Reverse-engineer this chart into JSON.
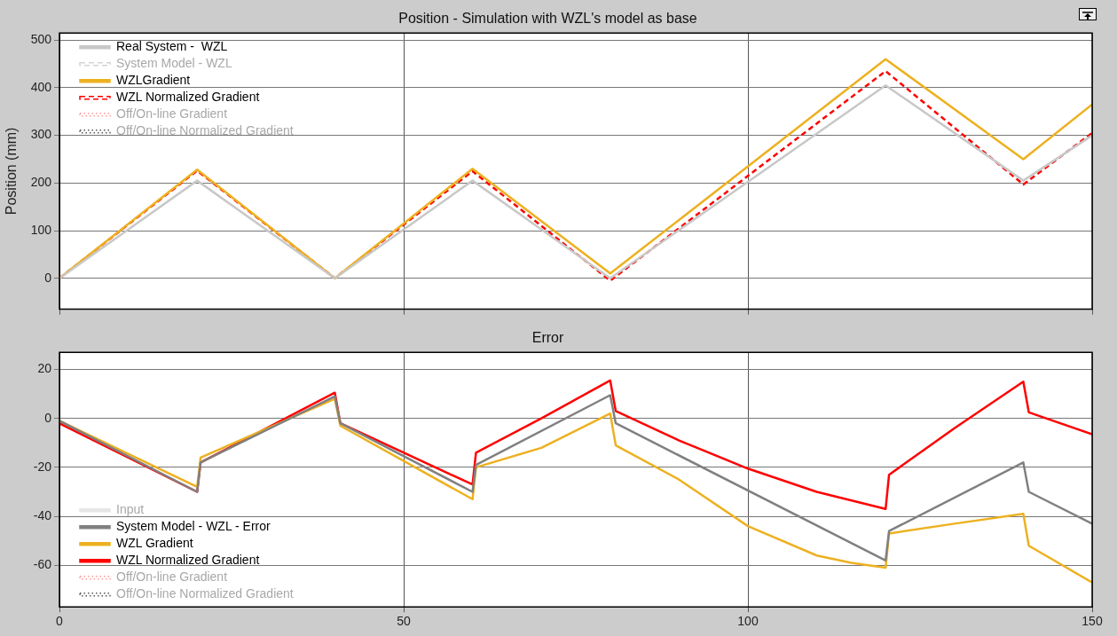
{
  "chart_data": [
    {
      "type": "line",
      "title": "Position - Simulation with WZL's model as base",
      "ylabel": "Position (mm)",
      "xlim": [
        0,
        150
      ],
      "xticks": [
        0,
        50,
        100,
        150
      ],
      "ylim": [
        -65,
        515
      ],
      "yticks": [
        0,
        100,
        200,
        300,
        400,
        500
      ],
      "grid": true,
      "legend": "top left",
      "tick_labels": "y",
      "series": [
        {
          "name": "Real System -  WZL",
          "color": "#c8c8c8",
          "x": [
            0,
            20,
            40,
            60,
            80,
            120,
            140,
            150
          ],
          "values": [
            0,
            205,
            0,
            205,
            0,
            405,
            205,
            300
          ]
        },
        {
          "name": "System Model - WZL",
          "color": "#d4d4d4",
          "line_style": "dashed"
        },
        {
          "name": "WZLGradient",
          "color": "#edb120",
          "x": [
            0,
            20,
            40,
            60,
            80,
            120,
            140,
            150
          ],
          "values": [
            0,
            228,
            0,
            230,
            10,
            460,
            250,
            365
          ]
        },
        {
          "name": "WZL Normalized Gradient",
          "color": "#ff0000",
          "line_style": "dashed",
          "x": [
            0,
            20,
            40,
            60,
            80,
            120,
            140,
            150
          ],
          "values": [
            0,
            226,
            0,
            225,
            -5,
            435,
            197,
            305
          ]
        },
        {
          "name": "Off/On-line Gradient",
          "color": "#ff9999",
          "line_style": "dotted"
        },
        {
          "name": "Off/On-line Normalized Gradient",
          "color": "#555555",
          "line_style": "dotted"
        }
      ]
    },
    {
      "type": "line",
      "title": "Error",
      "xlim": [
        0,
        150
      ],
      "xticks": [
        0,
        50,
        100,
        150
      ],
      "ylim": [
        -77,
        27
      ],
      "yticks": [
        -60,
        -40,
        -20,
        0,
        20
      ],
      "grid": true,
      "legend": "bottom left",
      "series": [
        {
          "name": "Input",
          "color": "#e6e6e6"
        },
        {
          "name": "System Model - WZL - Error",
          "color": "#808080",
          "x": [
            0,
            20,
            20.5,
            40,
            40.8,
            60,
            60.5,
            80,
            80.8,
            120,
            120.5,
            140,
            140.8,
            150
          ],
          "values": [
            -1,
            -30,
            -18,
            9,
            -2,
            -30,
            -19,
            9.5,
            -2,
            -58,
            -46,
            -18,
            -30,
            -43
          ]
        },
        {
          "name": "WZL Gradient",
          "color": "#edb120",
          "x": [
            0,
            20,
            20.5,
            40,
            40.8,
            60,
            60.5,
            70,
            80,
            80.8,
            90,
            100,
            110,
            115,
            120,
            120.5,
            130,
            140,
            140.8,
            150
          ],
          "values": [
            -1,
            -28,
            -16,
            8,
            -3,
            -33,
            -20,
            -12,
            2,
            -11,
            -25,
            -44,
            -56,
            -59,
            -61,
            -47,
            -43,
            -39,
            -52,
            -67
          ]
        },
        {
          "name": "WZL Normalized Gradient",
          "color": "#ff0000",
          "x": [
            0,
            20,
            20.5,
            40,
            40.8,
            60,
            60.5,
            70,
            80,
            80.8,
            90,
            100,
            110,
            120,
            120.5,
            130,
            140,
            140.8,
            150
          ],
          "values": [
            -2,
            -30,
            -18,
            10.5,
            -2,
            -27,
            -14,
            0,
            15.5,
            3,
            -9,
            -20.5,
            -30,
            -37,
            -23,
            -4,
            15,
            2.5,
            -6.5
          ]
        },
        {
          "name": "Off/On-line Gradient",
          "color": "#ff9999",
          "line_style": "dotted"
        },
        {
          "name": "Off/On-line Normalized Gradient",
          "color": "#555555",
          "line_style": "dotted"
        }
      ]
    }
  ]
}
